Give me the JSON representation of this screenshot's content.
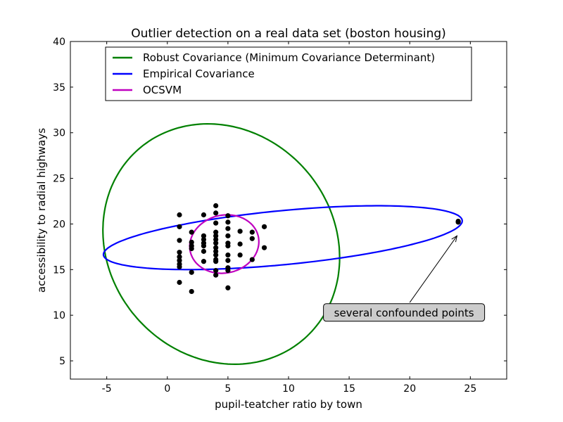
{
  "chart_data": {
    "type": "scatter",
    "title": "Outlier detection on a real data set (boston housing)",
    "xlabel": "pupil-teatcher ratio by town",
    "ylabel": "accessibility to radial highways",
    "xlim": [
      -8,
      28
    ],
    "ylim": [
      3,
      40
    ],
    "xticks": [
      -5,
      0,
      5,
      10,
      15,
      20,
      25
    ],
    "yticks": [
      5,
      10,
      15,
      20,
      25,
      30,
      35,
      40
    ],
    "grid": false,
    "legend_position": "top-center",
    "points": [
      [
        1,
        21.0
      ],
      [
        1,
        19.7
      ],
      [
        1,
        18.2
      ],
      [
        1,
        16.9
      ],
      [
        1,
        16.4
      ],
      [
        1,
        16.0
      ],
      [
        1,
        15.6
      ],
      [
        1,
        15.3
      ],
      [
        1,
        13.6
      ],
      [
        2,
        19.1
      ],
      [
        2,
        18.0
      ],
      [
        2,
        17.6
      ],
      [
        2,
        17.3
      ],
      [
        2,
        14.7
      ],
      [
        2,
        12.6
      ],
      [
        3,
        21.0
      ],
      [
        3,
        18.7
      ],
      [
        3,
        18.3
      ],
      [
        3,
        17.9
      ],
      [
        3,
        17.6
      ],
      [
        3,
        17.0
      ],
      [
        3,
        15.9
      ],
      [
        4,
        22.0
      ],
      [
        4,
        21.2
      ],
      [
        4,
        20.1
      ],
      [
        4,
        19.1
      ],
      [
        4,
        18.7
      ],
      [
        4,
        18.3
      ],
      [
        4,
        17.9
      ],
      [
        4,
        17.4
      ],
      [
        4,
        17.0
      ],
      [
        4,
        16.6
      ],
      [
        4,
        16.1
      ],
      [
        4,
        15.9
      ],
      [
        4,
        14.9
      ],
      [
        4,
        14.4
      ],
      [
        5,
        20.9
      ],
      [
        5,
        20.2
      ],
      [
        5,
        19.5
      ],
      [
        5,
        18.7
      ],
      [
        5,
        17.9
      ],
      [
        5,
        17.6
      ],
      [
        5,
        16.6
      ],
      [
        5,
        16.0
      ],
      [
        5,
        15.2
      ],
      [
        5,
        14.9
      ],
      [
        5,
        13.0
      ],
      [
        6,
        19.2
      ],
      [
        6,
        17.8
      ],
      [
        6,
        16.6
      ],
      [
        7,
        19.1
      ],
      [
        7,
        18.4
      ],
      [
        7,
        16.1
      ],
      [
        8,
        19.7
      ],
      [
        8,
        17.4
      ],
      [
        24,
        20.2
      ],
      [
        24,
        20.3
      ]
    ],
    "series": [
      {
        "name": "Robust Covariance (Minimum Covariance Determinant)",
        "color": "#008000",
        "ellipse": {
          "center": [
            4.45,
            17.8
          ],
          "u": [
            9.75,
            -0.75
          ],
          "v": [
            -0.55,
            13.15
          ]
        }
      },
      {
        "name": "Empirical Covariance",
        "color": "#0000ff",
        "ellipse": {
          "center": [
            9.53,
            18.5
          ],
          "u": [
            14.8,
            1.8
          ],
          "v": [
            0.2,
            3.0
          ]
        }
      },
      {
        "name": "OCSVM",
        "color": "#bf00bf",
        "ellipse": {
          "center": [
            4.7,
            17.8
          ],
          "u": [
            2.85,
            0.15
          ],
          "v": [
            0.1,
            3.2
          ]
        }
      }
    ],
    "annotation": {
      "text": "several confounded points",
      "text_at": [
        19.5,
        10.3
      ],
      "arrow_from": [
        20.0,
        11.4
      ],
      "arrow_to": [
        23.9,
        18.7
      ]
    }
  }
}
